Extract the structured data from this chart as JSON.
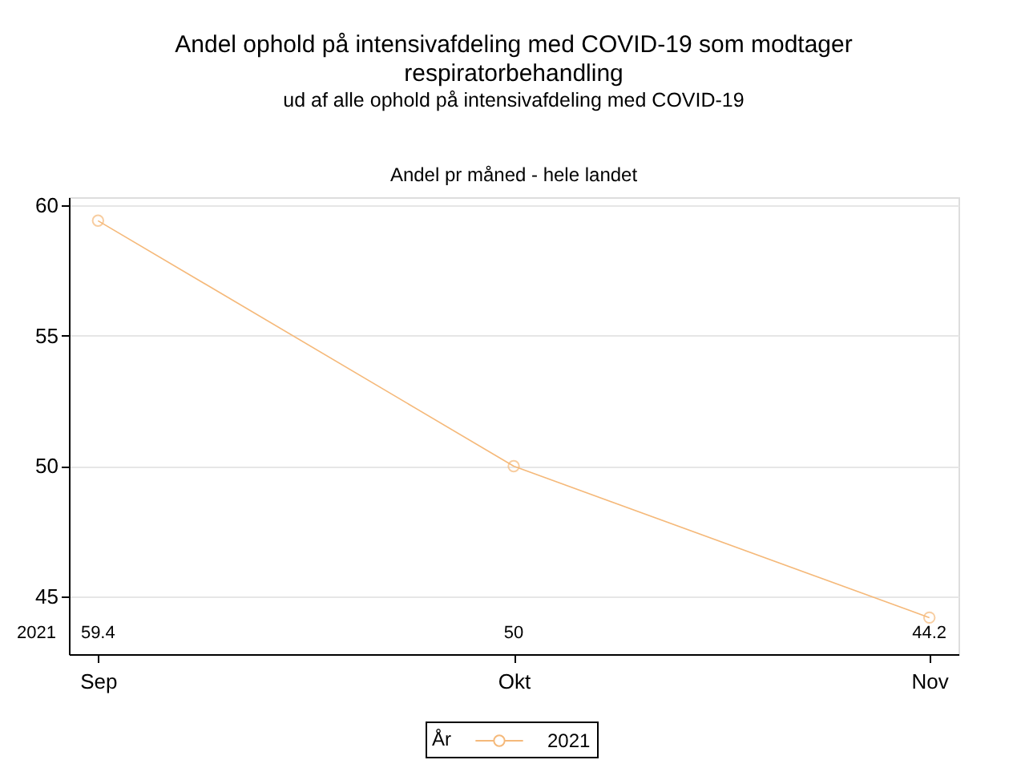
{
  "chart_data": {
    "type": "line",
    "title": "Andel ophold på intensivafdeling med COVID-19 som modtager respiratorbehandling",
    "subtitle": "ud af alle ophold på intensivafdeling med COVID-19",
    "annotations": [
      "Andel pr måned - hele landet",
      "59.4",
      "50",
      "44.2"
    ],
    "categories": [
      "Sep",
      "Okt",
      "Nov"
    ],
    "series": [
      {
        "name": "2021",
        "color": "#f5b97a",
        "values": [
          59.4,
          50,
          44.2
        ]
      }
    ],
    "legend_title": "År",
    "legend": "bottom",
    "marker": "circle",
    "line_style": "solid",
    "ylim": [
      42.8,
      60.3
    ],
    "yticks": [
      45,
      50,
      55,
      60
    ],
    "grid": "y"
  }
}
